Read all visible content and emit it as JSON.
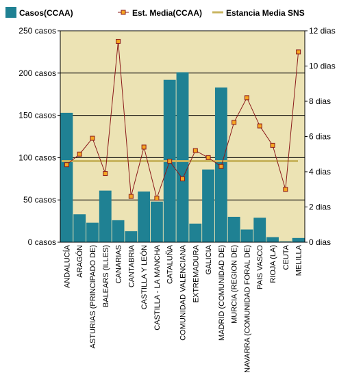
{
  "chart_data": {
    "type": "bar",
    "categories": [
      "ANDALUCÍA",
      "ARAGÓN",
      "ASTURIAS (PRINCIPADO DE)",
      "BALEARS (ILLES)",
      "CANARIAS",
      "CANTABRIA",
      "CASTILLA Y LEÓN",
      "CASTILLA - LA MANCHA",
      "CATALUÑA",
      "COMUNIDAD VALENCIANA",
      "EXTREMADURA",
      "GALICIA",
      "MADRID (COMUNIDAD DE)",
      "MURCIA (REGION DE)",
      "NAVARRA (COMUNIDAD FORAL DE)",
      "PAIS VASCO",
      "RIOJA (LA)",
      "CEUTA",
      "MELILLA"
    ],
    "series": [
      {
        "name": "Casos(CCAA)",
        "type": "bar",
        "axis": "left",
        "color": "#1f8193",
        "values": [
          153,
          33,
          23,
          61,
          26,
          13,
          60,
          48,
          192,
          201,
          22,
          86,
          183,
          30,
          15,
          29,
          6,
          1,
          5
        ]
      },
      {
        "name": "Est. Media(CCAA)",
        "type": "line",
        "axis": "right",
        "color": "#8b1a1a",
        "marker_color": "#f5a623",
        "values": [
          4.4,
          5.0,
          5.9,
          3.9,
          11.4,
          2.6,
          5.4,
          2.5,
          4.6,
          3.6,
          5.2,
          4.8,
          4.3,
          6.8,
          8.2,
          6.6,
          5.5,
          3.0,
          10.8
        ]
      },
      {
        "name": "Estancia Media SNS",
        "type": "reference",
        "axis": "right",
        "color": "#c8b560",
        "value": 4.6
      }
    ],
    "y_left": {
      "ylim": [
        0,
        250
      ],
      "ticks": [
        0,
        50,
        100,
        150,
        200,
        250
      ],
      "tick_labels": [
        "0 casos",
        "50 casos",
        "100 casos",
        "150 casos",
        "200 casos",
        "250 casos"
      ]
    },
    "y_right": {
      "ylim": [
        0,
        12
      ],
      "ticks": [
        0,
        2,
        4,
        6,
        8,
        10,
        12
      ],
      "tick_labels": [
        "0 dias",
        "2 dias",
        "4 dias",
        "6 dias",
        "8 dias",
        "10 dias",
        "12 dias"
      ]
    },
    "grid": true,
    "legend": "top",
    "plot_background": "#ece3b4"
  }
}
